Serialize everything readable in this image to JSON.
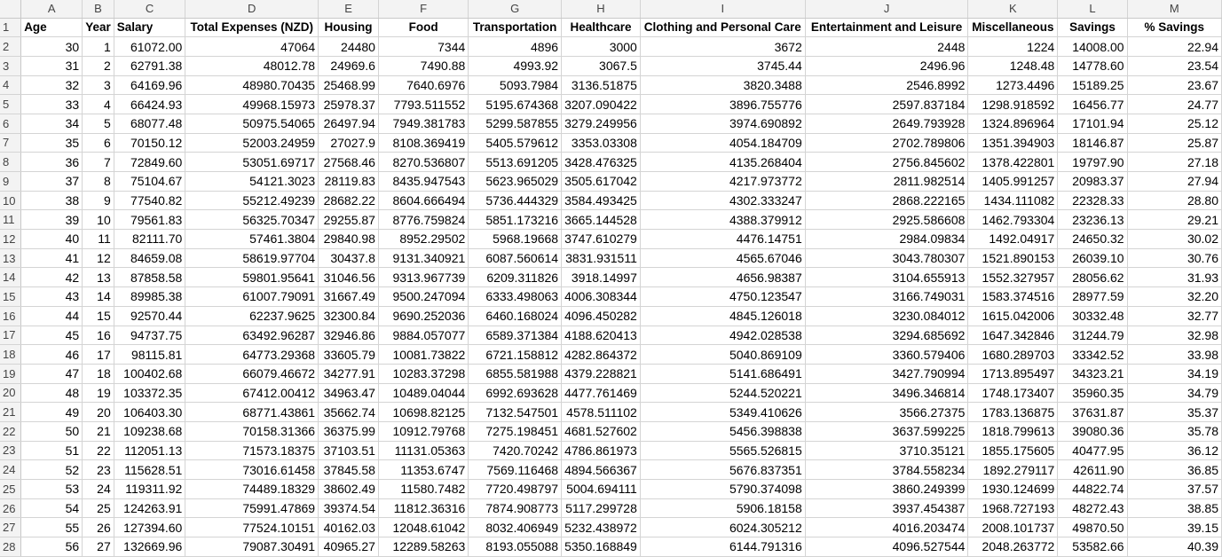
{
  "sheet": {
    "columns": [
      "A",
      "B",
      "C",
      "D",
      "E",
      "F",
      "G",
      "H",
      "I",
      "J",
      "K",
      "L",
      "M"
    ],
    "rows": [
      [
        "Age",
        "Year",
        "Salary",
        "Total Expenses (NZD)",
        "Housing",
        "Food",
        "Transportation",
        "Healthcare",
        "Clothing and Personal Care",
        "Entertainment and Leisure",
        "Miscellaneous",
        "Savings",
        "% Savings"
      ],
      [
        "30",
        "1",
        "61072.00",
        "47064",
        "24480",
        "7344",
        "4896",
        "3000",
        "3672",
        "2448",
        "1224",
        "14008.00",
        "22.94"
      ],
      [
        "31",
        "2",
        "62791.38",
        "48012.78",
        "24969.6",
        "7490.88",
        "4993.92",
        "3067.5",
        "3745.44",
        "2496.96",
        "1248.48",
        "14778.60",
        "23.54"
      ],
      [
        "32",
        "3",
        "64169.96",
        "48980.70435",
        "25468.99",
        "7640.6976",
        "5093.7984",
        "3136.51875",
        "3820.3488",
        "2546.8992",
        "1273.4496",
        "15189.25",
        "23.67"
      ],
      [
        "33",
        "4",
        "66424.93",
        "49968.15973",
        "25978.37",
        "7793.511552",
        "5195.674368",
        "3207.090422",
        "3896.755776",
        "2597.837184",
        "1298.918592",
        "16456.77",
        "24.77"
      ],
      [
        "34",
        "5",
        "68077.48",
        "50975.54065",
        "26497.94",
        "7949.381783",
        "5299.587855",
        "3279.249956",
        "3974.690892",
        "2649.793928",
        "1324.896964",
        "17101.94",
        "25.12"
      ],
      [
        "35",
        "6",
        "70150.12",
        "52003.24959",
        "27027.9",
        "8108.369419",
        "5405.579612",
        "3353.03308",
        "4054.184709",
        "2702.789806",
        "1351.394903",
        "18146.87",
        "25.87"
      ],
      [
        "36",
        "7",
        "72849.60",
        "53051.69717",
        "27568.46",
        "8270.536807",
        "5513.691205",
        "3428.476325",
        "4135.268404",
        "2756.845602",
        "1378.422801",
        "19797.90",
        "27.18"
      ],
      [
        "37",
        "8",
        "75104.67",
        "54121.3023",
        "28119.83",
        "8435.947543",
        "5623.965029",
        "3505.617042",
        "4217.973772",
        "2811.982514",
        "1405.991257",
        "20983.37",
        "27.94"
      ],
      [
        "38",
        "9",
        "77540.82",
        "55212.49239",
        "28682.22",
        "8604.666494",
        "5736.444329",
        "3584.493425",
        "4302.333247",
        "2868.222165",
        "1434.111082",
        "22328.33",
        "28.80"
      ],
      [
        "39",
        "10",
        "79561.83",
        "56325.70347",
        "29255.87",
        "8776.759824",
        "5851.173216",
        "3665.144528",
        "4388.379912",
        "2925.586608",
        "1462.793304",
        "23236.13",
        "29.21"
      ],
      [
        "40",
        "11",
        "82111.70",
        "57461.3804",
        "29840.98",
        "8952.29502",
        "5968.19668",
        "3747.610279",
        "4476.14751",
        "2984.09834",
        "1492.04917",
        "24650.32",
        "30.02"
      ],
      [
        "41",
        "12",
        "84659.08",
        "58619.97704",
        "30437.8",
        "9131.340921",
        "6087.560614",
        "3831.931511",
        "4565.67046",
        "3043.780307",
        "1521.890153",
        "26039.10",
        "30.76"
      ],
      [
        "42",
        "13",
        "87858.58",
        "59801.95641",
        "31046.56",
        "9313.967739",
        "6209.311826",
        "3918.14997",
        "4656.98387",
        "3104.655913",
        "1552.327957",
        "28056.62",
        "31.93"
      ],
      [
        "43",
        "14",
        "89985.38",
        "61007.79091",
        "31667.49",
        "9500.247094",
        "6333.498063",
        "4006.308344",
        "4750.123547",
        "3166.749031",
        "1583.374516",
        "28977.59",
        "32.20"
      ],
      [
        "44",
        "15",
        "92570.44",
        "62237.9625",
        "32300.84",
        "9690.252036",
        "6460.168024",
        "4096.450282",
        "4845.126018",
        "3230.084012",
        "1615.042006",
        "30332.48",
        "32.77"
      ],
      [
        "45",
        "16",
        "94737.75",
        "63492.96287",
        "32946.86",
        "9884.057077",
        "6589.371384",
        "4188.620413",
        "4942.028538",
        "3294.685692",
        "1647.342846",
        "31244.79",
        "32.98"
      ],
      [
        "46",
        "17",
        "98115.81",
        "64773.29368",
        "33605.79",
        "10081.73822",
        "6721.158812",
        "4282.864372",
        "5040.869109",
        "3360.579406",
        "1680.289703",
        "33342.52",
        "33.98"
      ],
      [
        "47",
        "18",
        "100402.68",
        "66079.46672",
        "34277.91",
        "10283.37298",
        "6855.581988",
        "4379.228821",
        "5141.686491",
        "3427.790994",
        "1713.895497",
        "34323.21",
        "34.19"
      ],
      [
        "48",
        "19",
        "103372.35",
        "67412.00412",
        "34963.47",
        "10489.04044",
        "6992.693628",
        "4477.761469",
        "5244.520221",
        "3496.346814",
        "1748.173407",
        "35960.35",
        "34.79"
      ],
      [
        "49",
        "20",
        "106403.30",
        "68771.43861",
        "35662.74",
        "10698.82125",
        "7132.547501",
        "4578.511102",
        "5349.410626",
        "3566.27375",
        "1783.136875",
        "37631.87",
        "35.37"
      ],
      [
        "50",
        "21",
        "109238.68",
        "70158.31366",
        "36375.99",
        "10912.79768",
        "7275.198451",
        "4681.527602",
        "5456.398838",
        "3637.599225",
        "1818.799613",
        "39080.36",
        "35.78"
      ],
      [
        "51",
        "22",
        "112051.13",
        "71573.18375",
        "37103.51",
        "11131.05363",
        "7420.70242",
        "4786.861973",
        "5565.526815",
        "3710.35121",
        "1855.175605",
        "40477.95",
        "36.12"
      ],
      [
        "52",
        "23",
        "115628.51",
        "73016.61458",
        "37845.58",
        "11353.6747",
        "7569.116468",
        "4894.566367",
        "5676.837351",
        "3784.558234",
        "1892.279117",
        "42611.90",
        "36.85"
      ],
      [
        "53",
        "24",
        "119311.92",
        "74489.18329",
        "38602.49",
        "11580.7482",
        "7720.498797",
        "5004.694111",
        "5790.374098",
        "3860.249399",
        "1930.124699",
        "44822.74",
        "37.57"
      ],
      [
        "54",
        "25",
        "124263.91",
        "75991.47869",
        "39374.54",
        "11812.36316",
        "7874.908773",
        "5117.299728",
        "5906.18158",
        "3937.454387",
        "1968.727193",
        "48272.43",
        "38.85"
      ],
      [
        "55",
        "26",
        "127394.60",
        "77524.10151",
        "40162.03",
        "12048.61042",
        "8032.406949",
        "5232.438972",
        "6024.305212",
        "4016.203474",
        "2008.101737",
        "49870.50",
        "39.15"
      ],
      [
        "56",
        "27",
        "132669.96",
        "79087.30491",
        "40965.27",
        "12289.58263",
        "8193.055088",
        "5350.168849",
        "6144.791316",
        "4096.527544",
        "2048.263772",
        "53582.66",
        "40.39"
      ]
    ]
  }
}
